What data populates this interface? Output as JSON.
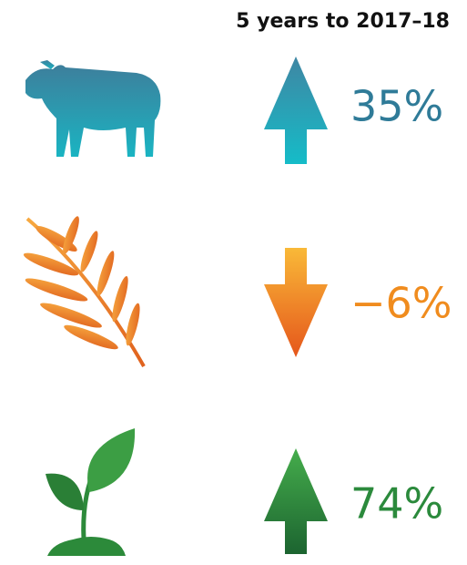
{
  "header": {
    "title": "5 years to 2017–18"
  },
  "items": [
    {
      "label": "35%"
    },
    {
      "label": "−6%"
    },
    {
      "label": "74%"
    }
  ]
}
